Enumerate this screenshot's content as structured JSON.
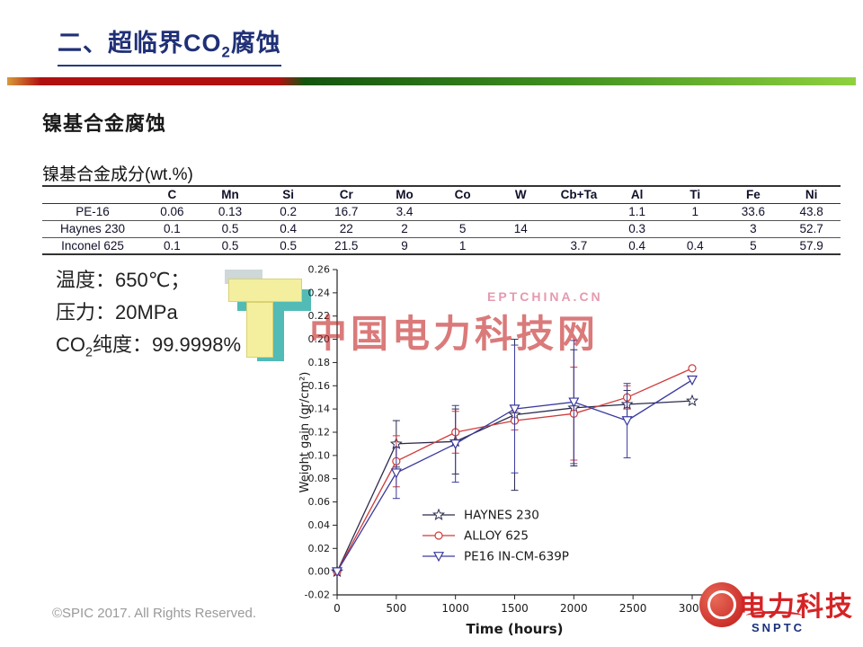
{
  "title": {
    "part1": "二、超临界CO",
    "sub": "2",
    "part2": "腐蚀"
  },
  "section_heading": "镍基合金腐蚀",
  "table": {
    "caption": "镍基合金成分(wt.%)",
    "headers": [
      "",
      "C",
      "Mn",
      "Si",
      "Cr",
      "Mo",
      "Co",
      "W",
      "Cb+Ta",
      "Al",
      "Ti",
      "Fe",
      "Ni"
    ],
    "rows": [
      [
        "PE-16",
        "0.06",
        "0.13",
        "0.2",
        "16.7",
        "3.4",
        "",
        "",
        "",
        "1.1",
        "1",
        "33.6",
        "43.8"
      ],
      [
        "Haynes 230",
        "0.1",
        "0.5",
        "0.4",
        "22",
        "2",
        "5",
        "14",
        "",
        "0.3",
        "",
        "3",
        "52.7"
      ],
      [
        "Inconel 625",
        "0.1",
        "0.5",
        "0.5",
        "21.5",
        "9",
        "1",
        "",
        "3.7",
        "0.4",
        "0.4",
        "5",
        "57.9"
      ]
    ]
  },
  "conditions": {
    "temperature": "温度：650℃；",
    "pressure": "压力：20MPa",
    "purity_part1": "CO",
    "purity_sub": "2",
    "purity_part2": "纯度：99.9998%"
  },
  "watermarks": {
    "small": "EPTCHINA.CN",
    "big": "中国电力科技网"
  },
  "footer": {
    "copyright": "©SPIC 2017. All Rights Reserved.",
    "logo_text": "电力科技",
    "snptc": "SNPTC"
  },
  "chart_data": {
    "type": "line",
    "title": "",
    "xlabel": "Time (hours)",
    "ylabel": "Weight gain (gr/cm²)",
    "xlim": [
      0,
      3000
    ],
    "ylim": [
      -0.02,
      0.26
    ],
    "xticks": [
      0,
      500,
      1000,
      1500,
      2000,
      2500,
      3000
    ],
    "ytick_step": 0.02,
    "grid": false,
    "legend_position": "inside lower right",
    "series": [
      {
        "name": "HAYNES 230",
        "color": "#2b2b4e",
        "marker": "star",
        "points": [
          [
            0,
            0,
            0
          ],
          [
            500,
            0.11,
            0.02
          ],
          [
            1000,
            0.112,
            0.028
          ],
          [
            1500,
            0.135,
            0.065
          ],
          [
            2000,
            0.141,
            0.05
          ],
          [
            2450,
            0.144,
            0.012
          ],
          [
            3000,
            0.147,
            0
          ]
        ]
      },
      {
        "name": "ALLOY 625",
        "color": "#d03a3a",
        "marker": "circle",
        "points": [
          [
            0,
            0,
            0
          ],
          [
            500,
            0.095,
            0.022
          ],
          [
            1000,
            0.12,
            0.018
          ],
          [
            1500,
            0.13,
            0.008
          ],
          [
            2000,
            0.136,
            0.04
          ],
          [
            2450,
            0.15,
            0.01
          ],
          [
            3000,
            0.175,
            0
          ]
        ]
      },
      {
        "name": "PE16 IN-CM-639P",
        "color": "#3a3a9e",
        "marker": "triangle-down",
        "points": [
          [
            0,
            0,
            0
          ],
          [
            500,
            0.085,
            0.022
          ],
          [
            1000,
            0.11,
            0.033
          ],
          [
            1500,
            0.14,
            0.055
          ],
          [
            2000,
            0.146,
            0.053
          ],
          [
            2450,
            0.13,
            0.032
          ],
          [
            3000,
            0.165,
            0
          ]
        ]
      }
    ]
  }
}
